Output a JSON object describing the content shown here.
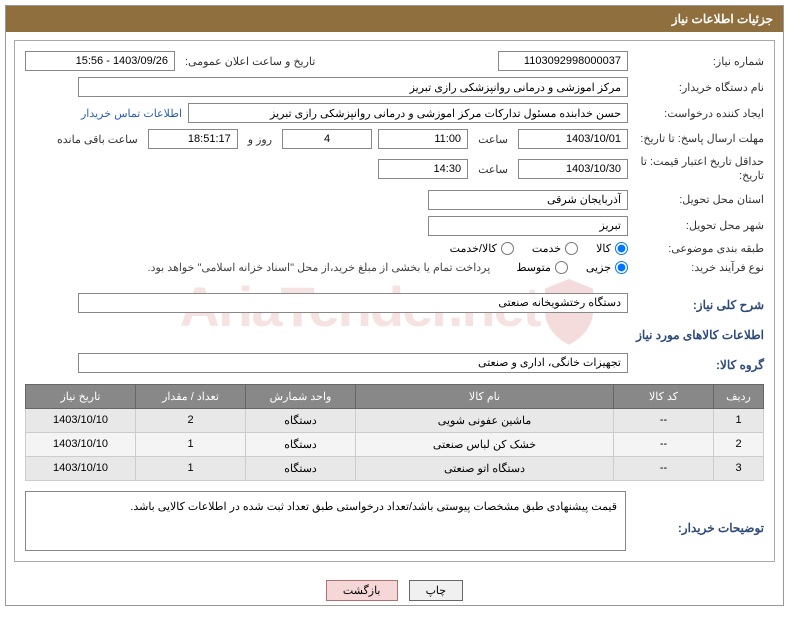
{
  "titleBar": "جزئیات اطلاعات نیاز",
  "labels": {
    "needNumber": "شماره نیاز:",
    "announceDateTime": "تاریخ و ساعت اعلان عمومی:",
    "buyerOrg": "نام دستگاه خریدار:",
    "requester": "ایجاد کننده درخواست:",
    "responseDeadline": "مهلت ارسال پاسخ: تا تاریخ:",
    "hour": "ساعت",
    "dayAnd": "روز و",
    "remaining": "ساعت باقی مانده",
    "priceValidity": "حداقل تاریخ اعتبار قیمت: تا تاریخ:",
    "deliveryProvince": "استان محل تحویل:",
    "deliveryCity": "شهر محل تحویل:",
    "classification": "طبقه بندی موضوعی:",
    "purchaseType": "نوع فرآیند خرید:",
    "generalDesc": "شرح کلی نیاز:",
    "goodsInfo": "اطلاعات کالاهای مورد نیاز",
    "goodsGroup": "گروه کالا:",
    "buyerNotes": "توضیحات خریدار:",
    "contactLink": "اطلاعات تماس خریدار"
  },
  "values": {
    "needNumber": "1103092998000037",
    "announceDateTime": "1403/09/26 - 15:56",
    "buyerOrg": "مرکز اموزشی و درمانی روانپزشکی رازی تبریز",
    "requester": "حسن خدابنده مسئول تدارکات مرکز اموزشی و درمانی روانپزشکی رازی تبریز",
    "responseDate": "1403/10/01",
    "responseHour": "11:00",
    "daysLeft": "4",
    "timeLeft": "18:51:17",
    "priceValidityDate": "1403/10/30",
    "priceValidityHour": "14:30",
    "province": "آذربایجان شرقی",
    "city": "تبریز",
    "paymentNote": "پرداخت تمام یا بخشی از مبلغ خرید،از محل \"اسناد خزانه اسلامی\" خواهد بود.",
    "generalDesc": "دستگاه رختشویخانه صنعتی",
    "goodsGroup": "تجهیزات خانگی، اداری و صنعتی",
    "buyerNotes": "قیمت پیشنهادی طبق مشخصات پیوستی باشد/تعداد درخواستی طبق تعداد ثبت شده در اطلاعات کالایی باشد."
  },
  "radios": {
    "classification": {
      "options": [
        "کالا",
        "خدمت",
        "کالا/خدمت"
      ],
      "selected": 0
    },
    "purchaseType": {
      "options": [
        "جزیی",
        "متوسط"
      ],
      "selected": 0
    }
  },
  "table": {
    "headers": [
      "ردیف",
      "کد کالا",
      "نام کالا",
      "واحد شمارش",
      "تعداد / مقدار",
      "تاریخ نیاز"
    ],
    "rows": [
      [
        "1",
        "--",
        "ماشین عفونی شویی",
        "دستگاه",
        "2",
        "1403/10/10"
      ],
      [
        "2",
        "--",
        "خشک کن لباس صنعتی",
        "دستگاه",
        "1",
        "1403/10/10"
      ],
      [
        "3",
        "--",
        "دستگاه اتو صنعتی",
        "دستگاه",
        "1",
        "1403/10/10"
      ]
    ]
  },
  "buttons": {
    "print": "چاپ",
    "return": "بازگشت"
  },
  "colors": {
    "titleBg": "#8f6f3e",
    "thBg": "#888888",
    "link": "#2a5db0"
  }
}
